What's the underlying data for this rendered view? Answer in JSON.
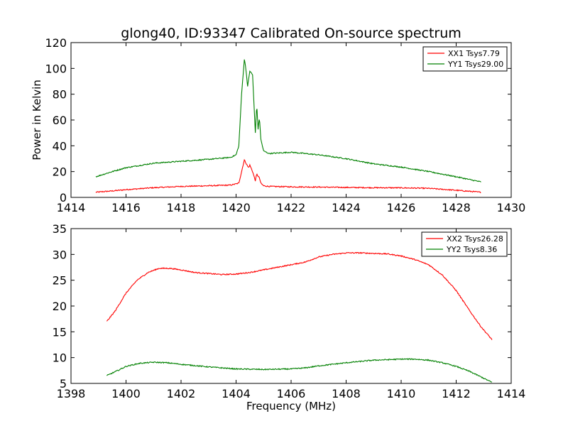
{
  "chart_data": [
    {
      "type": "line",
      "title": "glong40, ID:93347 Calibrated On-source spectrum",
      "xlabel": "",
      "ylabel": "Power in Kelvin",
      "xlim": [
        1414,
        1430
      ],
      "ylim": [
        0,
        120
      ],
      "xticks": [
        1414,
        1416,
        1418,
        1420,
        1422,
        1424,
        1426,
        1428,
        1430
      ],
      "yticks": [
        0,
        20,
        40,
        60,
        80,
        100,
        120
      ],
      "grid": false,
      "legend_position": "top-right",
      "series": [
        {
          "name": "XX1 Tsys7.79",
          "color": "#ff0000",
          "x": [
            1414.9,
            1415.5,
            1416,
            1417,
            1418,
            1419,
            1419.8,
            1420.1,
            1420.2,
            1420.3,
            1420.35,
            1420.45,
            1420.5,
            1420.6,
            1420.7,
            1420.75,
            1420.85,
            1420.9,
            1421,
            1421.2,
            1422,
            1423,
            1424,
            1425,
            1426,
            1427,
            1428,
            1428.9
          ],
          "y": [
            4,
            5,
            6,
            7.5,
            8.5,
            9,
            9.5,
            11,
            20,
            29,
            27,
            23,
            25,
            20,
            13,
            18,
            15,
            11,
            9,
            8.5,
            8.2,
            8,
            7.7,
            7.5,
            7.4,
            7,
            5.5,
            4
          ]
        },
        {
          "name": "YY1 Tsys29.00",
          "color": "#008000",
          "x": [
            1414.9,
            1415.5,
            1416,
            1417,
            1418,
            1419,
            1419.8,
            1420.0,
            1420.1,
            1420.2,
            1420.3,
            1420.35,
            1420.42,
            1420.5,
            1420.6,
            1420.7,
            1420.75,
            1420.8,
            1420.85,
            1420.9,
            1421.0,
            1421.2,
            1422,
            1423,
            1424,
            1425,
            1426,
            1427,
            1428,
            1428.9
          ],
          "y": [
            16,
            20,
            23,
            26.5,
            28,
            29.5,
            31,
            33,
            40,
            80,
            107,
            101,
            86,
            98,
            95,
            50,
            72,
            53,
            62,
            45,
            36,
            34,
            35,
            33,
            30,
            26,
            23.5,
            20,
            16,
            12
          ]
        }
      ]
    },
    {
      "type": "line",
      "title": "",
      "xlabel": "Frequency (MHz)",
      "ylabel": "",
      "xlim": [
        1398,
        1414
      ],
      "ylim": [
        5,
        35
      ],
      "xticks": [
        1398,
        1400,
        1402,
        1404,
        1406,
        1408,
        1410,
        1412,
        1414
      ],
      "yticks": [
        5,
        10,
        15,
        20,
        25,
        30,
        35
      ],
      "grid": false,
      "legend_position": "top-right",
      "series": [
        {
          "name": "XX2 Tsys26.28",
          "color": "#ff0000",
          "x": [
            1399.3,
            1399.6,
            1400,
            1400.4,
            1400.8,
            1401.2,
            1401.6,
            1402,
            1402.5,
            1403,
            1403.5,
            1404,
            1404.5,
            1405,
            1405.5,
            1406,
            1406.5,
            1407,
            1407.5,
            1408,
            1408.5,
            1409,
            1409.5,
            1410,
            1410.5,
            1411,
            1411.5,
            1412,
            1412.5,
            1412.9,
            1413.3
          ],
          "y": [
            17,
            19,
            22.5,
            25,
            26.5,
            27.3,
            27.3,
            27,
            26.5,
            26.3,
            26.1,
            26.2,
            26.5,
            27,
            27.5,
            28,
            28.5,
            29.5,
            30,
            30.3,
            30.3,
            30.2,
            30.1,
            29.7,
            29,
            28,
            26,
            23,
            19,
            16,
            13.5
          ]
        },
        {
          "name": "YY2 Tsys8.36",
          "color": "#008000",
          "x": [
            1399.3,
            1399.7,
            1400,
            1400.5,
            1401,
            1401.5,
            1402,
            1403,
            1404,
            1405,
            1406,
            1406.5,
            1407,
            1408,
            1409,
            1410,
            1410.5,
            1411,
            1411.5,
            1412,
            1412.5,
            1413,
            1413.3
          ],
          "y": [
            6.5,
            7.5,
            8.3,
            8.9,
            9.1,
            9.0,
            8.7,
            8.2,
            7.8,
            7.7,
            7.8,
            8.0,
            8.4,
            9.0,
            9.5,
            9.7,
            9.7,
            9.5,
            9.0,
            8.3,
            7.3,
            6.0,
            5.2
          ]
        }
      ]
    }
  ]
}
